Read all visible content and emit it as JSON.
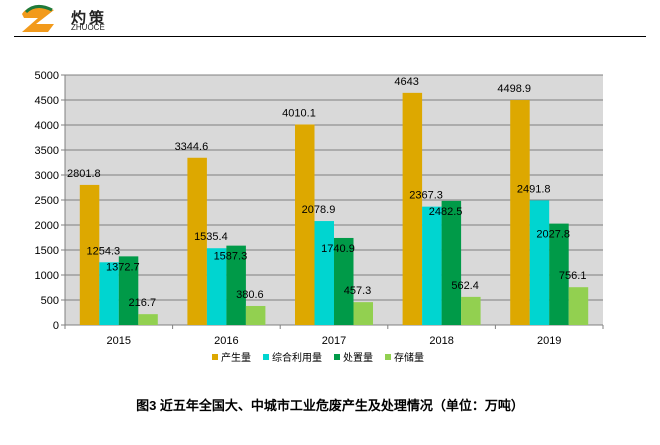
{
  "logo": {
    "cn": "灼策",
    "en": "ZHUOCE"
  },
  "caption": "图3   近五年全国大、中城市工业危废产生及处理情况（单位：万吨）",
  "chart_data": {
    "type": "bar",
    "categories": [
      "2015",
      "2016",
      "2017",
      "2018",
      "2019"
    ],
    "series": [
      {
        "name": "产生量",
        "color": "#DDA800",
        "values": [
          2801.8,
          3344.6,
          4010.1,
          4643,
          4498.9
        ]
      },
      {
        "name": "综合利用量",
        "color": "#00D5D0",
        "values": [
          1254.3,
          1535.4,
          2078.9,
          2367.3,
          2491.8
        ]
      },
      {
        "name": "处置量",
        "color": "#009A48",
        "values": [
          1372.7,
          1587.3,
          1740.9,
          2482.5,
          2027.8
        ]
      },
      {
        "name": "存储量",
        "color": "#92D050",
        "values": [
          216.7,
          380.6,
          457.3,
          562.4,
          756.1
        ]
      }
    ],
    "ylim": [
      0,
      5000
    ],
    "yticks": [
      0,
      500,
      1000,
      1500,
      2000,
      2500,
      3000,
      3500,
      4000,
      4500,
      5000
    ],
    "grid": true,
    "legend": "bottom",
    "plot_background": "#D9D9D9"
  }
}
